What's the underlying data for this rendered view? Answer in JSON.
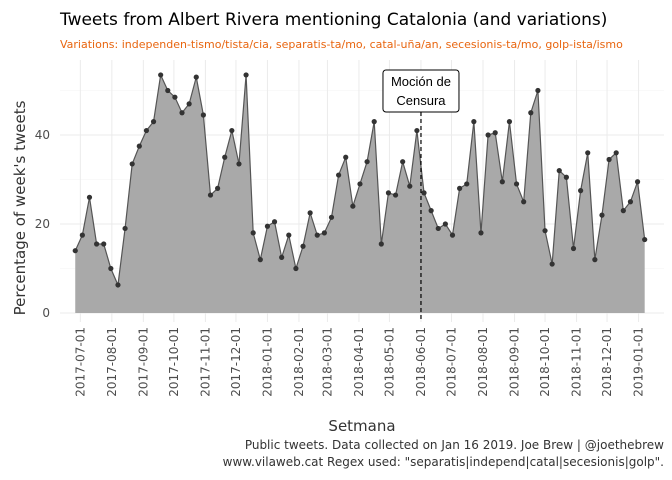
{
  "header": {
    "title": "Tweets from Albert Rivera mentioning Catalonia (and variations)",
    "subtitle": "Variations: independen-tismo/tista/cia, separatis-ta/mo, catal-uña/an, secesionis-ta/mo, golp-ista/ismo"
  },
  "caption": {
    "line1": "Public tweets. Data collected on Jan 16 2019. Joe Brew | @joethebrew",
    "line2": "www.vilaweb.cat Regex used: \"separatis|independ|catal|secesionis|golp\"."
  },
  "colors": {
    "area": "#A9A9A9",
    "line": "#555555",
    "point": "#333333",
    "subtitle": "#E8650F",
    "grid": "#EBEBEB"
  },
  "chart_data": {
    "type": "area",
    "xlabel": "Setmana",
    "ylabel": "Percentage of week's tweets",
    "ylim": [
      0,
      55
    ],
    "yticks": [
      0,
      20,
      40
    ],
    "ytick_labels": [
      "0",
      "20",
      "40"
    ],
    "xtick_labels": [
      "2017-07-01",
      "2017-08-01",
      "2017-09-01",
      "2017-10-01",
      "2017-11-01",
      "2017-12-01",
      "2018-01-01",
      "2018-02-01",
      "2018-03-01",
      "2018-04-01",
      "2018-05-01",
      "2018-06-01",
      "2018-07-01",
      "2018-08-01",
      "2018-09-01",
      "2018-10-01",
      "2018-11-01",
      "2018-12-01",
      "2019-01-01"
    ],
    "grid": true,
    "series": [
      {
        "x": [
          "2017-06-26",
          "2017-07-03",
          "2017-07-10",
          "2017-07-17",
          "2017-07-24",
          "2017-07-31",
          "2017-08-07",
          "2017-08-14",
          "2017-08-21",
          "2017-08-28",
          "2017-09-04",
          "2017-09-11",
          "2017-09-18",
          "2017-09-25",
          "2017-10-02",
          "2017-10-09",
          "2017-10-16",
          "2017-10-23",
          "2017-10-30",
          "2017-11-06",
          "2017-11-13",
          "2017-11-20",
          "2017-11-27",
          "2017-12-04",
          "2017-12-11",
          "2017-12-18",
          "2017-12-25",
          "2018-01-01",
          "2018-01-08",
          "2018-01-15",
          "2018-01-22",
          "2018-01-29",
          "2018-02-05",
          "2018-02-12",
          "2018-02-19",
          "2018-02-26",
          "2018-03-05",
          "2018-03-12",
          "2018-03-19",
          "2018-03-26",
          "2018-04-02",
          "2018-04-09",
          "2018-04-16",
          "2018-04-23",
          "2018-04-30",
          "2018-05-07",
          "2018-05-14",
          "2018-05-21",
          "2018-05-28",
          "2018-06-04",
          "2018-06-11",
          "2018-06-18",
          "2018-06-25",
          "2018-07-02",
          "2018-07-09",
          "2018-07-16",
          "2018-07-23",
          "2018-07-30",
          "2018-08-06",
          "2018-08-13",
          "2018-08-20",
          "2018-08-27",
          "2018-09-03",
          "2018-09-10",
          "2018-09-17",
          "2018-09-24",
          "2018-10-01",
          "2018-10-08",
          "2018-10-15",
          "2018-10-22",
          "2018-10-29",
          "2018-11-05",
          "2018-11-12",
          "2018-11-19",
          "2018-11-26",
          "2018-12-03",
          "2018-12-10",
          "2018-12-17",
          "2018-12-24",
          "2018-12-31",
          "2019-01-07"
        ],
        "values": [
          14,
          17.5,
          26,
          15.5,
          15.5,
          10,
          6.3,
          19,
          33.5,
          37.5,
          41,
          43,
          53.5,
          50,
          48.5,
          45,
          47,
          53,
          44.5,
          26.5,
          28,
          35,
          41,
          33.5,
          53.5,
          18,
          12,
          19.5,
          20.5,
          12.5,
          17.5,
          10,
          15,
          22.5,
          17.5,
          18,
          21.5,
          31,
          35,
          24,
          29,
          34,
          43,
          15.5,
          27,
          26.5,
          34,
          28.5,
          41,
          27,
          23,
          19,
          20,
          17.5,
          28,
          29,
          43,
          18,
          40,
          40.5,
          29.5,
          43,
          29,
          25,
          45,
          50,
          18.5,
          11,
          32,
          30.5,
          14.5,
          27.5,
          36,
          12,
          22,
          34.5,
          36,
          23,
          25,
          29.5,
          16.5
        ]
      }
    ],
    "annotation": {
      "x": "2018-06-01",
      "label_lines": [
        "Moción de",
        "Censura"
      ],
      "line_style": "dashed"
    }
  }
}
